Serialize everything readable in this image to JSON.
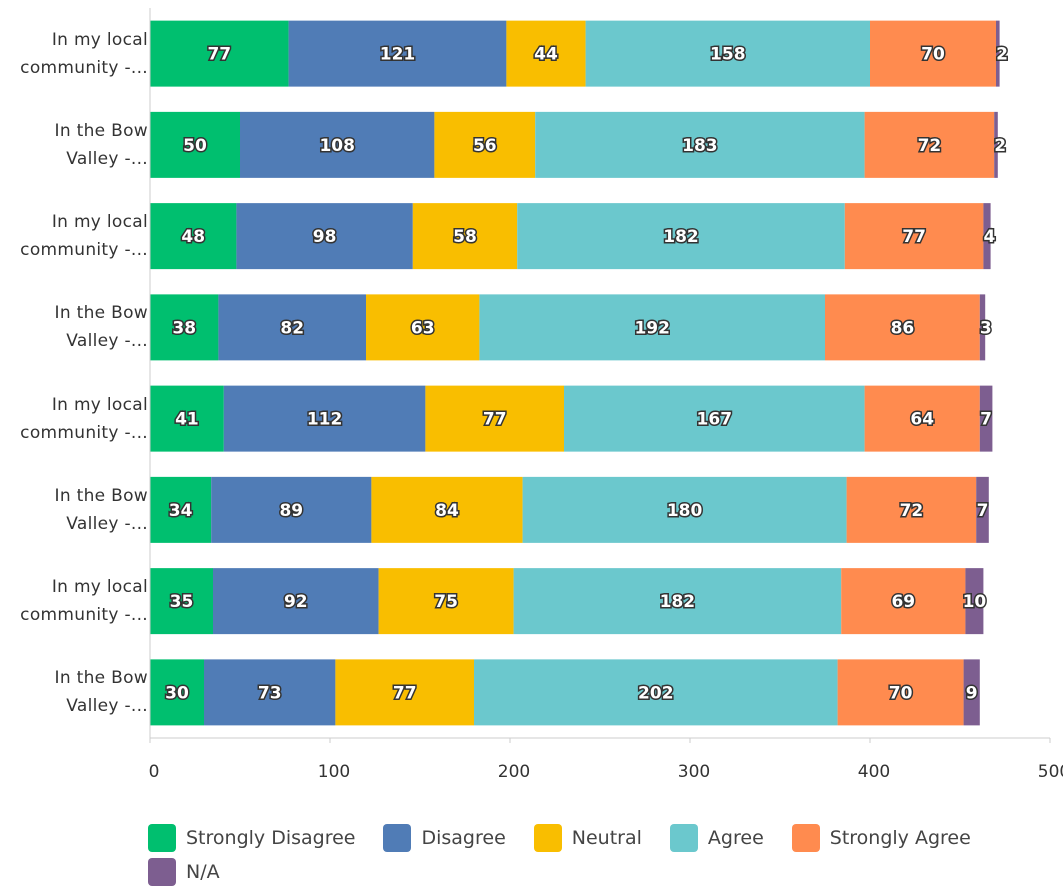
{
  "chart_data": {
    "type": "stacked_bar_horizontal",
    "categories": [
      "In my local community -...",
      "In the Bow Valley -...",
      "In my local community -...",
      "In the Bow Valley -...",
      "In my local community -...",
      "In the Bow Valley -...",
      "In my local community -...",
      "In the Bow Valley -..."
    ],
    "series": [
      {
        "name": "Strongly Disagree",
        "color": "#00bf6f",
        "values": [
          77,
          50,
          48,
          38,
          41,
          34,
          35,
          30
        ]
      },
      {
        "name": "Disagree",
        "color": "#507cb6",
        "values": [
          121,
          108,
          98,
          82,
          112,
          89,
          92,
          73
        ]
      },
      {
        "name": "Neutral",
        "color": "#f9be00",
        "values": [
          44,
          56,
          58,
          63,
          77,
          84,
          75,
          77
        ]
      },
      {
        "name": "Agree",
        "color": "#6bc8cd",
        "values": [
          158,
          183,
          182,
          192,
          167,
          180,
          182,
          202
        ]
      },
      {
        "name": "Strongly Agree",
        "color": "#ff8b4f",
        "values": [
          70,
          72,
          77,
          86,
          64,
          72,
          69,
          70
        ]
      },
      {
        "name": "N/A",
        "color": "#7d5e90",
        "values": [
          2,
          2,
          4,
          3,
          7,
          7,
          10,
          9
        ]
      }
    ],
    "xlim": [
      0,
      500
    ],
    "xticks": [
      0,
      100,
      200,
      300,
      400,
      500
    ]
  }
}
